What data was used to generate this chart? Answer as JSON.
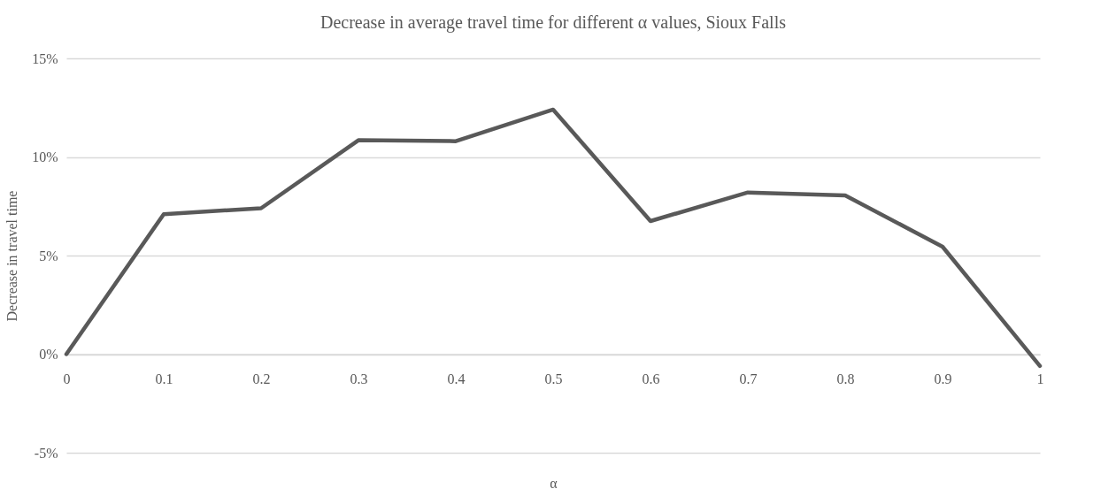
{
  "chart_data": {
    "type": "line",
    "title": "Decrease in average travel time for different α values, Sioux Falls",
    "xlabel": "α",
    "ylabel": "Decrease in travel time",
    "categories": [
      "0",
      "0.1",
      "0.2",
      "0.3",
      "0.4",
      "0.5",
      "0.6",
      "0.7",
      "0.8",
      "0.9",
      "1"
    ],
    "series": [
      {
        "color": "#595959",
        "values": [
          0,
          7.1,
          7.4,
          10.85,
          10.8,
          12.4,
          6.75,
          8.2,
          8.05,
          5.45,
          -0.6
        ]
      }
    ],
    "ylim": [
      -5,
      15
    ],
    "yticks": [
      {
        "value": -5,
        "label": "-5%"
      },
      {
        "value": 0,
        "label": "0%"
      },
      {
        "value": 5,
        "label": "5%"
      },
      {
        "value": 10,
        "label": "10%"
      },
      {
        "value": 15,
        "label": "15%"
      }
    ],
    "grid": "y",
    "legend": false,
    "marker": "none",
    "line_style": "solid"
  }
}
